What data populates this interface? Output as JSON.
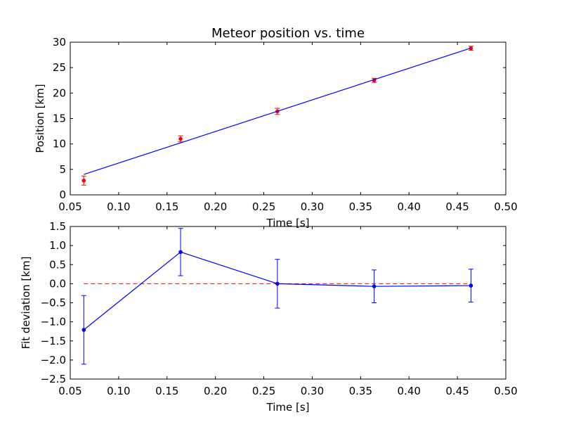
{
  "chart_data": [
    {
      "type": "scatter",
      "title": "Meteor position vs. time",
      "xlabel": "Time [s]",
      "ylabel": "Position [km]",
      "xlim": [
        0.05,
        0.5
      ],
      "ylim": [
        0,
        30
      ],
      "xticks": [
        "0.05",
        "0.10",
        "0.15",
        "0.20",
        "0.25",
        "0.30",
        "0.35",
        "0.40",
        "0.45",
        "0.50"
      ],
      "yticks": [
        "0",
        "5",
        "10",
        "15",
        "20",
        "25",
        "30"
      ],
      "grid": false,
      "series": [
        {
          "kind": "errorbar-points",
          "color": "#ff0000",
          "x": [
            0.064,
            0.164,
            0.264,
            0.364,
            0.464
          ],
          "y": [
            2.8,
            11.0,
            16.4,
            22.5,
            28.8
          ],
          "yerr": [
            0.9,
            0.6,
            0.6,
            0.4,
            0.4
          ]
        },
        {
          "kind": "fit-line",
          "color": "#0000ff",
          "x": [
            0.064,
            0.464
          ],
          "y": [
            4.0,
            28.85
          ]
        }
      ]
    },
    {
      "type": "line",
      "title": "",
      "xlabel": "Time [s]",
      "ylabel": "Fit deviation [km]",
      "xlim": [
        0.05,
        0.5
      ],
      "ylim": [
        -2.5,
        1.5
      ],
      "xticks": [
        "0.05",
        "0.10",
        "0.15",
        "0.20",
        "0.25",
        "0.30",
        "0.35",
        "0.40",
        "0.45",
        "0.50"
      ],
      "yticks": [
        "1.5",
        "1.0",
        "0.5",
        "0.0",
        "−0.5",
        "−1.0",
        "−1.5",
        "−2.0",
        "−2.5"
      ],
      "grid": false,
      "reference_line": {
        "y": 0.0,
        "style": "dashed",
        "color": "#ff0000"
      },
      "series": [
        {
          "kind": "errorbar-line",
          "color": "#0000ff",
          "x": [
            0.064,
            0.164,
            0.264,
            0.364,
            0.464
          ],
          "y": [
            -1.21,
            0.83,
            0.0,
            -0.07,
            -0.05
          ],
          "yerr": [
            0.9,
            0.62,
            0.64,
            0.43,
            0.43
          ]
        }
      ]
    }
  ]
}
